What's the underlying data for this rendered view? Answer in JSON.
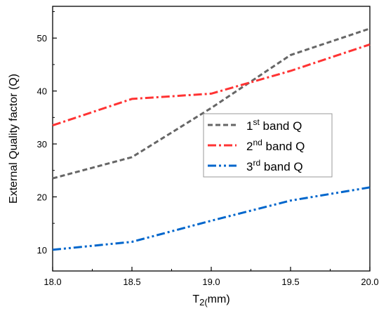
{
  "chart_data": {
    "type": "line",
    "x": [
      18.0,
      18.5,
      19.0,
      19.5,
      20.0
    ],
    "x_tick_labels": [
      "18.0",
      "18.5",
      "19.0",
      "19.5",
      "20.0"
    ],
    "y_tick_labels": [
      "10",
      "20",
      "30",
      "40",
      "50"
    ],
    "y_ticks": [
      10,
      20,
      30,
      40,
      50
    ],
    "xlim": [
      18.0,
      20.0
    ],
    "ylim": [
      6.0,
      56.0
    ],
    "xlabel_main": "T",
    "xlabel_sub": "2(",
    "xlabel_tail": "mm)",
    "ylabel": "External Quality factor (Q)",
    "series": [
      {
        "name_main": "1",
        "name_sup": "st",
        "name_tail": " band Q",
        "values": [
          23.5,
          27.5,
          36.8,
          46.8,
          51.8
        ],
        "color": "#666666",
        "dash": "dash"
      },
      {
        "name_main": "2",
        "name_sup": "nd",
        "name_tail": " band Q",
        "values": [
          33.5,
          38.5,
          39.5,
          43.8,
          48.8
        ],
        "color": "#ff3333",
        "dash": "dashdot"
      },
      {
        "name_main": "3",
        "name_sup": "rd",
        "name_tail": " band Q",
        "values": [
          10.0,
          11.5,
          15.5,
          19.3,
          21.8
        ],
        "color": "#0066cc",
        "dash": "dashdotdot"
      }
    ],
    "grid": false,
    "legend_position": "center-right"
  }
}
